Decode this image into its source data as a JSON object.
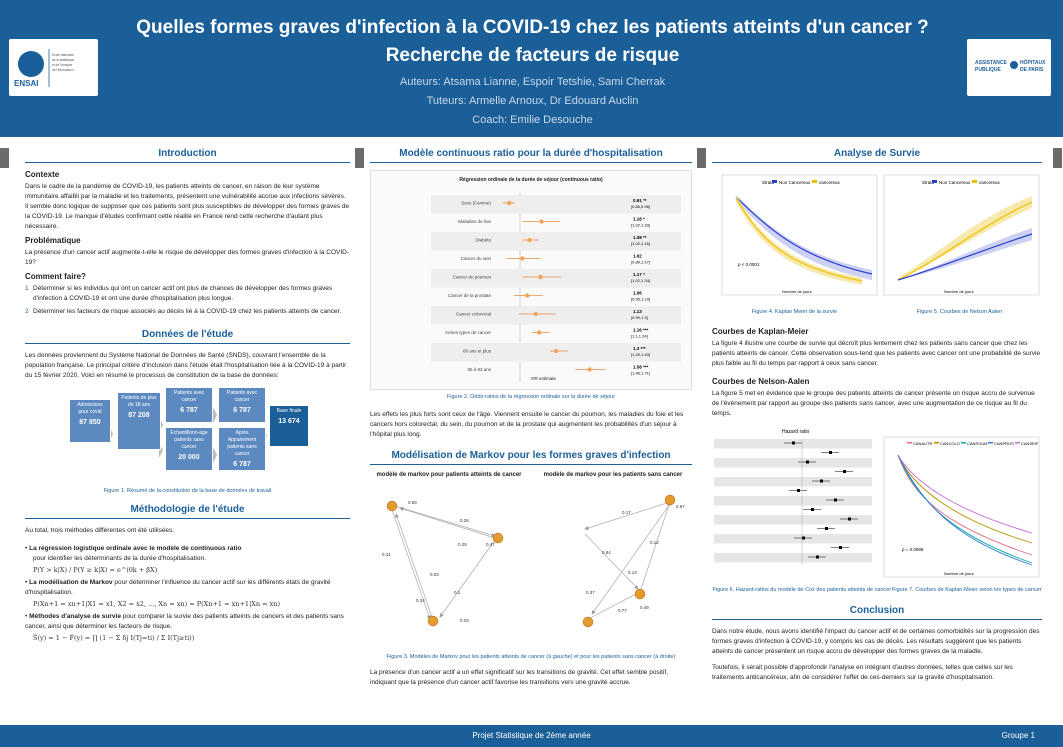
{
  "header": {
    "title": "Quelles formes graves d'infection à la COVID-19 chez les patients atteints d'un cancer ? Recherche de facteurs de risque",
    "authors": "Auteurs: Atsama Lianne, Espoir Tetshie, Sami Cherrak",
    "tutors": "Tuteurs: Armelle Arnoux, Dr Edouard Auclin",
    "coach": "Coach: Emilie Desouche",
    "ensai_logo": "ENSAI",
    "ensai_sub": "École nationale de la statistique et de l'analyse de l'information",
    "aphp_logo": "ASSISTANCE PUBLIQUE HÔPITAUX DE PARIS"
  },
  "intro": {
    "title": "Introduction",
    "contexte_h": "Contexte",
    "contexte": "Dans le cadre de la pandémie de COVID-19, les patients atteints de cancer, en raison de leur système immunitaire affaibli par la maladie et les traitements, présentent une vulnérabilité accrue aux infections sévères. Il semble donc logique de supposer que ces patients sont plus susceptibles de développer des formes graves de la COVID-19. Le manque d'études confirmant cette réalité en France rend cette recherche d'autant plus nécessaire.",
    "prob_h": "Problématique",
    "prob": "La présence d'un cancer actif augmente-t-elle le risque de développer des formes graves d'infection à la COVID-19?",
    "how_h": "Comment faire?",
    "how": [
      "Déterminer si les individus qui ont un cancer actif ont plus de chances de développer des formes graves d'infection à COVID-19 et ont une durée d'hospitalisation plus longue.",
      "Déterminer les facteurs de risque associés au décès lié à la COVID-19 chez les patients atteints de cancer."
    ]
  },
  "data": {
    "title": "Données de l'étude",
    "text": "Les données proviennent du Système National de Données de Santé (SNDS), couvrant l'ensemble de la population française. Le principal critère d'inclusion dans l'étude était l'hospitalisation liée à la COVID-19 à partir du 15 février 2020. Voici en résumé le processus de constitution de la base de données:",
    "boxes": [
      {
        "label": "Admissions pour covid",
        "value": "87 850"
      },
      {
        "label": "Patients de plus de 18 ans",
        "value": "87 208"
      },
      {
        "label": "Patients avec cancer",
        "value": "6 787"
      },
      {
        "label": "Echantillonn-age patients sans cancer",
        "value": "20 000"
      },
      {
        "label": "Patients avec cancer",
        "value": "6 787"
      },
      {
        "label": "Après Appariement patients sans cancer",
        "value": "6 787"
      },
      {
        "label": "Base finale",
        "value": "13 674"
      }
    ],
    "caption": "Figure 1. Résumé de la constitution de la base de données de travail"
  },
  "method": {
    "title": "Méthodologie de l'étude",
    "intro": "Au total, trois méthodes différentes ont été utilisées:",
    "m1_b": "La régression logistique ordinale avec le modèle de continuous ratio",
    "m1": "pour identifier les déterminants de la durée d'hospitalisation.",
    "m1_eq": "P(Y > k|X) / P(Y ≥ k|X) = e^(θk + βX)",
    "m2_b": "La modélisation de Markov",
    "m2": "pour déterminer l'influence du cancer actif sur les différents états de gravité d'hospitalisation.",
    "m2_eq": "P(Xn+1 = xn+1|X1 = x1, X2 = x2, ..., Xn = xn) = P(Xn+1 = xn+1|Xn = xn)",
    "m3_b": "Méthodes d'analyse de survie",
    "m3": "pour comparer la survie des patients atteints de cancers et des patients sans cancer, ainsi que déterminer les facteurs de risque.",
    "m3_eq": "Ŝ(y) = 1 − F̂(y) = ∏ (1 − Σ δj I(Tj=ti) / Σ I(Tj≥ti))"
  },
  "model": {
    "title": "Modèle continuous ratio pour la durée d'hospitalisation",
    "chart_title": "Régression ordinale de la durée de séjour (continuous ratio)",
    "caption": "Figure 2. Odds-ratios de la régression ordinale sur la durée de séjour",
    "xlabel": "OR estimate",
    "text": "Les effets les plus forts sont ceux de l'âge. Viennent ensuite le cancer du poumon, les maladies du foie et les cancers hors colorectal, du sein, du poumon et de la prostate qui augmentent les probabilités d'un séjour à l'hôpital plus long."
  },
  "markov": {
    "title": "Modélisation de Markov pour les formes graves d'infection",
    "sub1": "modèle de markov pour patients atteints de cancer",
    "sub2": "modèle de markov pour les patients sans cancer",
    "caption": "Figure 3. Modèles de Markov pour les patients atteints de cancer (à gauche) et pour les patients sans cancer (à droite)",
    "text": "La présence d'un cancer actif a un effet significatif sur les transitions de gravité. Cet effet semble positif, indiquant que la présence d'un cancer actif favorise les transitions vers une gravité accrue.",
    "left_labels": [
      "0.59",
      "0.41",
      "0.28",
      "0.25",
      "0.03",
      "0.24",
      "0.1",
      "0.47",
      "0.03"
    ],
    "right_labels": [
      "0.17",
      "0.12",
      "0.84",
      "0.67",
      "0.13",
      "0.37",
      "0.77",
      "0.49"
    ]
  },
  "survie": {
    "title": "Analyse de Survie",
    "legend_label": "Strata",
    "legend": [
      "Non Cancereux",
      "cancereux"
    ],
    "pvalue": "p < 0.0001",
    "xlab": "Nombre de jours",
    "ylab1": "Survival probability",
    "ylab2": "Cumulative hazard",
    "fig4": "Figure 4. Kaplan Meier de la survie",
    "fig5": "Figure 5. Courbes de Nelson Aalen",
    "km_h": "Courbes de Kaplan-Meier",
    "km": "La figure 4 illustre une courbe de survie qui décroît plus lentement chez les patients sans cancer que chez les patients atteints de cancer. Cette observation sous-tend que les patients avec cancer ont une probabilité de survie plus faible au fil du temps par rapport à ceux sans cancer.",
    "na_h": "Courbes de Nelson-Aalen",
    "na": "La figure 5 met en évidence que le groupe des patients atteints de cancer présente un risque accru de survenue de l'événement par rapport au groupe des patients sans cancer, avec une augmentation de ce risque au fil du temps.",
    "hr_title": "Hazard ratio",
    "fig6": "Figure 6. Hazard-ratios du modèle de Cox des patients atteints de cancer",
    "fig7": "Figure 7. Courbes de Kaplan-Meier selon les types de cancer",
    "pvalue2": "p = 0.0089",
    "strata2": [
      "CANAUTR",
      "CANCOLO",
      "CANPOUM",
      "CANPROS",
      "CANSEIF"
    ]
  },
  "conclusion": {
    "title": "Conclusion",
    "p1": "Dans notre étude, nous avons identifié l'impact du cancer actif et de certaines comorbidités sur la progression des formes graves d'infection à COVID-19, y compris les cas de décès. Les résultats suggèrent que les patients atteints de cancer présentent un risque accru de développer des formes graves de la maladie.",
    "p2": "Toutefois, il serait possible d'approfondir l'analyse en intégrant d'autres données, telles que celles sur les traitements anticancéreux, afin de considérer l'effet de ces-derniers sur la gravité d'hospitalisation."
  },
  "footer": {
    "center": "Projet Statistique de 2ème année",
    "right": "Groupe 1"
  },
  "chart_data": {
    "type": "scatter",
    "title": "Régression ordinale de la durée de séjour (continuous ratio)",
    "xlabel": "OR estimate",
    "categories": [
      "Sexe (Femme)",
      "Maladies du foie",
      "Diabète",
      "Cancer du sein",
      "Cancer du poumon",
      "Cancer de la prostate",
      "Cancer colorectal",
      "Autres types de cancer",
      "66 ans et plus",
      "65 à 83 ans"
    ],
    "values": [
      0.91,
      1.18,
      1.08,
      1.02,
      1.17,
      1.06,
      1.13,
      1.16,
      1.3,
      1.58
    ],
    "ci_low": [
      0.86,
      1.02,
      1.02,
      0.89,
      1.02,
      0.95,
      0.99,
      1.1,
      1.25,
      1.46
    ],
    "ci_high": [
      0.96,
      1.33,
      1.16,
      1.17,
      1.34,
      1.19,
      1.3,
      1.24,
      1.4,
      1.71
    ],
    "labels": [
      "0.91 **",
      "1.18 *",
      "1.08 **",
      "1.02",
      "1.17 *",
      "1.06",
      "1.13",
      "1.16 ***",
      "1.3 ***",
      "1.58 ***"
    ],
    "ci_text": [
      "[0.86,0.96]",
      "[1.02,1.33]",
      "[1.02,1.16]",
      "[0.89,1.17]",
      "[1.02,1.34]",
      "[0.95,1.19]",
      "[0.99,1.3]",
      "[1.1,1.24]",
      "[1.25,1.40]",
      "[1.46,1.71]"
    ],
    "xlim": [
      0.8,
      1.8
    ]
  }
}
